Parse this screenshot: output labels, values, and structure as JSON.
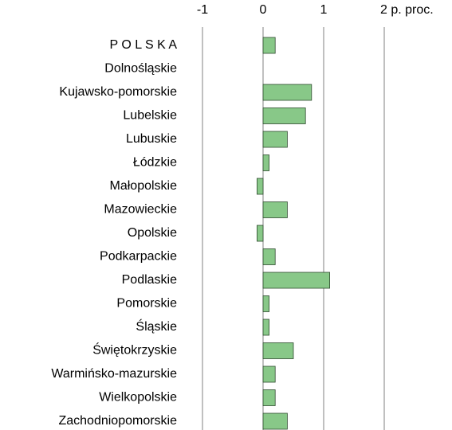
{
  "chart_data": {
    "type": "bar",
    "orientation": "horizontal",
    "categories": [
      "P O L S K A",
      "Dolnośląskie",
      "Kujawsko-pomorskie",
      "Lubelskie",
      "Lubuskie",
      "Łódzkie",
      "Małopolskie",
      "Mazowieckie",
      "Opolskie",
      "Podkarpackie",
      "Podlaskie",
      "Pomorskie",
      "Śląskie",
      "Świętokrzyskie",
      "Warmińsko-mazurskie",
      "Wielkopolskie",
      "Zachodniopomorskie"
    ],
    "values": [
      0.2,
      0,
      0.8,
      0.7,
      0.4,
      0.1,
      -0.1,
      0.4,
      -0.1,
      0.2,
      1.1,
      0.1,
      0.1,
      0.5,
      0.2,
      0.2,
      0.4
    ],
    "color": "#88c888",
    "xlim": [
      -1,
      2
    ],
    "xticks": [
      -1,
      0,
      1,
      {
        "value": 2,
        "label": "2 p. proc."
      }
    ],
    "grid": true
  }
}
